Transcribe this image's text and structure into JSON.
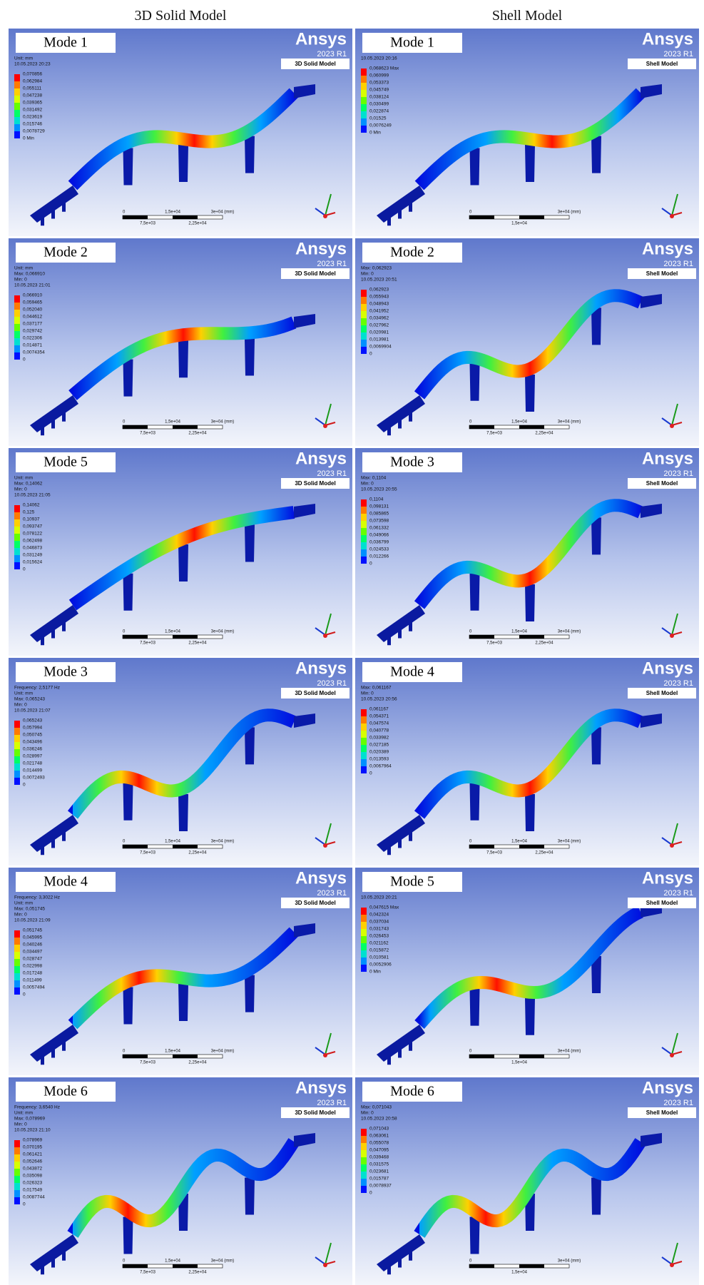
{
  "columns": [
    "3D Solid Model",
    "Shell Model"
  ],
  "panels": [
    {
      "mode": "Mode 1",
      "brand": "Ansys",
      "version": "2023 R1",
      "model": "3D Solid Model",
      "info": [
        "Unit: mm",
        "10.05.2023 20:23"
      ],
      "legend": [
        "0,070856",
        "0,062984",
        "0,055111",
        "0,047238",
        "0,039365",
        "0,031492",
        "0,023619",
        "0,015746",
        "0,0078729",
        "0 Min"
      ],
      "scale": [
        "0",
        "1,5e+04",
        "3e+04 (mm)",
        "7,5e+03",
        "2,25e+04"
      ]
    },
    {
      "mode": "Mode 1",
      "brand": "Ansys",
      "version": "2023 R1",
      "model": "Shell Model",
      "info": [
        "10.05.2023 20:16"
      ],
      "legend": [
        "0,068623 Max",
        "0,060999",
        "0,053373",
        "0,045749",
        "0,038124",
        "0,030499",
        "0,022874",
        "0,01525",
        "0,0076249",
        "0 Min"
      ],
      "scale": [
        "0",
        "3e+04 (mm)",
        "1,5e+04"
      ]
    },
    {
      "mode": "Mode 2",
      "brand": "Ansys",
      "version": "2023 R1",
      "model": "3D Solid Model",
      "info": [
        "Unit: mm",
        "Max: 0,066910",
        "Min: 0",
        "10.05.2023 21:01"
      ],
      "legend": [
        "0,066910",
        "0,059465",
        "0,052040",
        "0,044612",
        "0,037177",
        "0,029742",
        "0,022306",
        "0,014871",
        "0,0074354",
        "0"
      ],
      "scale": [
        "0",
        "1,5e+04",
        "3e+04 (mm)",
        "7,5e+03",
        "2,25e+04"
      ]
    },
    {
      "mode": "Mode 2",
      "brand": "Ansys",
      "version": "2023 R1",
      "model": "Shell Model",
      "info": [
        "Max: 0,062923",
        "Min: 0",
        "10.05.2023 20:51"
      ],
      "legend": [
        "0,062923",
        "0,055943",
        "0,048943",
        "0,041952",
        "0,034962",
        "0,027962",
        "0,020981",
        "0,013981",
        "0,0069904",
        "0"
      ],
      "scale": [
        "0",
        "1,5e+04",
        "3e+04 (mm)",
        "7,5e+03",
        "2,25e+04"
      ]
    },
    {
      "mode": "Mode 5",
      "brand": "Ansys",
      "version": "2023 R1",
      "model": "3D Solid Model",
      "info": [
        "Unit: mm",
        "Max: 0,14062",
        "Min: 0",
        "10.05.2023 21:05"
      ],
      "legend": [
        "0,14062",
        "0,125",
        "0,10937",
        "0,093747",
        "0,078122",
        "0,062498",
        "0,046873",
        "0,031249",
        "0,015624",
        "0"
      ],
      "scale": [
        "0",
        "1,5e+04",
        "3e+04 (mm)",
        "7,5e+03",
        "2,25e+04"
      ]
    },
    {
      "mode": "Mode 3",
      "brand": "Ansys",
      "version": "2023 R1",
      "model": "Shell Model",
      "info": [
        "Max: 0,1104",
        "Min: 0",
        "10.05.2023 20:55"
      ],
      "legend": [
        "0,1104",
        "0,098131",
        "0,085865",
        "0,073598",
        "0,061332",
        "0,049066",
        "0,036799",
        "0,024533",
        "0,012266",
        "0"
      ],
      "scale": [
        "0",
        "1,5e+04",
        "3e+04 (mm)",
        "7,5e+03",
        "2,25e+04"
      ]
    },
    {
      "mode": "Mode 3",
      "brand": "Ansys",
      "version": "2023 R1",
      "model": "3D Solid Model",
      "info": [
        "Frequency: 2,5177 Hz",
        "Unit: mm",
        "Max: 0,065243",
        "Min: 0",
        "10.05.2023 21:07"
      ],
      "legend": [
        "0,065243",
        "0,057994",
        "0,050745",
        "0,043496",
        "0,036246",
        "0,028997",
        "0,021748",
        "0,014499",
        "0,0072493",
        "0"
      ],
      "scale": [
        "0",
        "1,5e+04",
        "3e+04 (mm)",
        "7,5e+03",
        "2,25e+04"
      ]
    },
    {
      "mode": "Mode 4",
      "brand": "Ansys",
      "version": "2023 R1",
      "model": "Shell Model",
      "info": [
        "Max: 0,061167",
        "Min: 0",
        "10.05.2023 20:56"
      ],
      "legend": [
        "0,061167",
        "0,054371",
        "0,047574",
        "0,040778",
        "0,033982",
        "0,027185",
        "0,020389",
        "0,013593",
        "0,0067964",
        "0"
      ],
      "scale": [
        "0",
        "1,5e+04",
        "3e+04 (mm)",
        "7,5e+03",
        "2,25e+04"
      ]
    },
    {
      "mode": "Mode 4",
      "brand": "Ansys",
      "version": "2023 R1",
      "model": "3D Solid Model",
      "info": [
        "Frequency: 3,3022 Hz",
        "Unit: mm",
        "Max: 0,051745",
        "Min: 0",
        "10.05.2023 21:09"
      ],
      "legend": [
        "0,051745",
        "0,045995",
        "0,040246",
        "0,034497",
        "0,028747",
        "0,022998",
        "0,017248",
        "0,011499",
        "0,0057494",
        "0"
      ],
      "scale": [
        "0",
        "1,5e+04",
        "3e+04 (mm)",
        "7,5e+03",
        "2,25e+04"
      ]
    },
    {
      "mode": "Mode 5",
      "brand": "Ansys",
      "version": "2023 R1",
      "model": "Shell Model",
      "info": [
        "10.05.2023 20:21"
      ],
      "legend": [
        "0,047615 Max",
        "0,042324",
        "0,037034",
        "0,031743",
        "0,026453",
        "0,021162",
        "0,015872",
        "0,010581",
        "0,0052906",
        "0 Min"
      ],
      "scale": [
        "0",
        "3e+04 (mm)",
        "1,5e+04"
      ]
    },
    {
      "mode": "Mode 6",
      "brand": "Ansys",
      "version": "2023 R1",
      "model": "3D Solid Model",
      "info": [
        "Frequency: 3,6540 Hz",
        "Unit: mm",
        "Max: 0,078969",
        "Min: 0",
        "10.05.2023 21:10"
      ],
      "legend": [
        "0,078969",
        "0,070195",
        "0,061421",
        "0,052646",
        "0,043872",
        "0,035098",
        "0,026323",
        "0,017549",
        "0,0087744",
        "0"
      ],
      "scale": [
        "0",
        "1,5e+04",
        "3e+04 (mm)",
        "7,5e+03",
        "2,25e+04"
      ]
    },
    {
      "mode": "Mode 6",
      "brand": "Ansys",
      "version": "2023 R1",
      "model": "Shell Model",
      "info": [
        "Max: 0,071043",
        "Min: 0",
        "10.05.2023 20:58"
      ],
      "legend": [
        "0,071043",
        "0,063061",
        "0,055078",
        "0,047095",
        "0,039468",
        "0,031575",
        "0,023681",
        "0,015787",
        "0,0078937",
        "0"
      ],
      "scale": [
        "0",
        "3e+04 (mm)",
        "1,5e+04"
      ]
    }
  ]
}
